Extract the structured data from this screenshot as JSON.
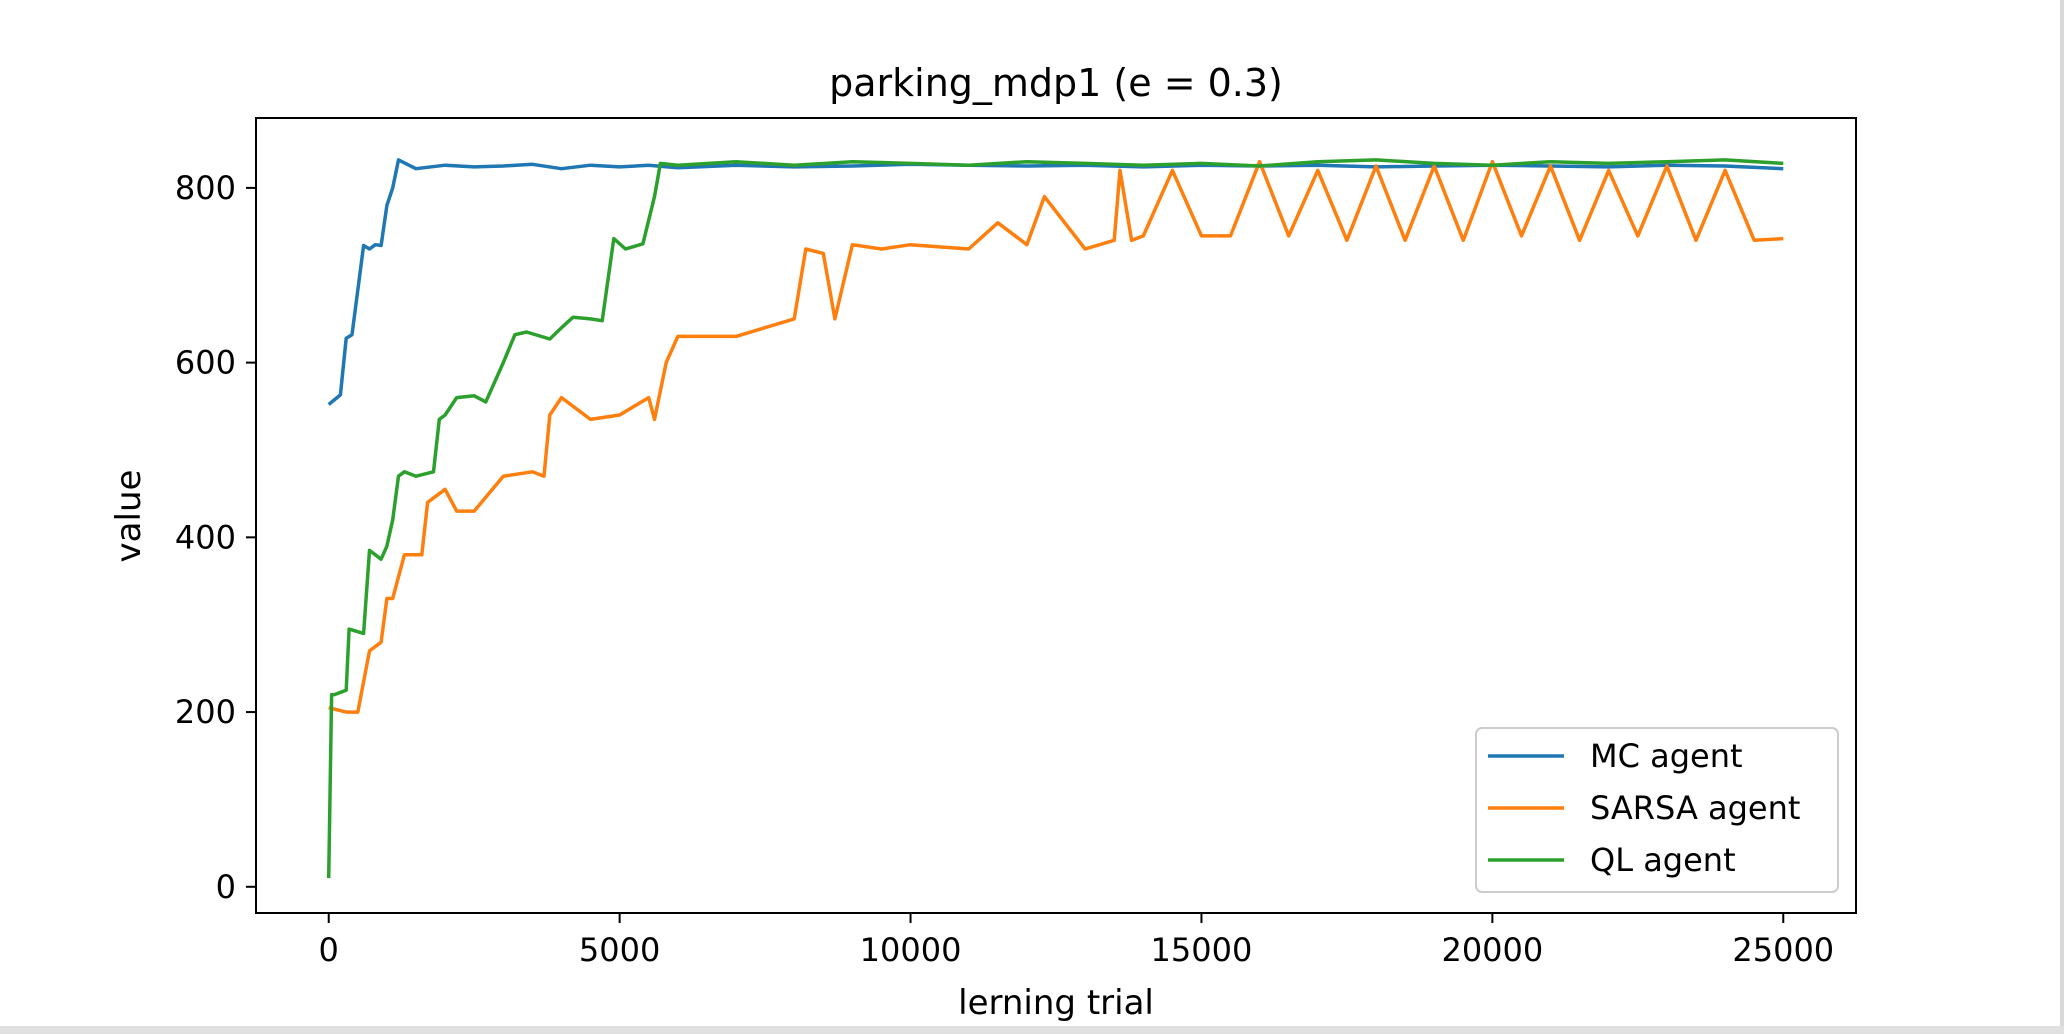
{
  "chart_data": {
    "type": "line",
    "title": "parking_mdp1 (e = 0.3)",
    "xlabel": "lerning trial",
    "ylabel": "value",
    "xlim": [
      -1250,
      26250
    ],
    "ylim": [
      -30,
      880
    ],
    "xticks": [
      0,
      5000,
      10000,
      15000,
      20000,
      25000
    ],
    "xtick_labels": [
      "0",
      "5000",
      "10000",
      "15000",
      "20000",
      "25000"
    ],
    "yticks": [
      0,
      200,
      400,
      600,
      800
    ],
    "ytick_labels": [
      "0",
      "200",
      "400",
      "600",
      "800"
    ],
    "grid": false,
    "legend_position": "bottom-right",
    "series": [
      {
        "name": "MC agent",
        "color": "#1f77b4",
        "x": [
          0,
          200,
          300,
          400,
          600,
          700,
          800,
          900,
          1000,
          1100,
          1200,
          1500,
          2000,
          2500,
          3000,
          3500,
          4000,
          4500,
          5000,
          5500,
          6000,
          7000,
          8000,
          9000,
          10000,
          11000,
          12000,
          13000,
          14000,
          15000,
          16000,
          17000,
          18000,
          19000,
          20000,
          21000,
          22000,
          23000,
          24000,
          25000
        ],
        "y": [
          552,
          563,
          628,
          632,
          734,
          730,
          735,
          734,
          780,
          800,
          832,
          822,
          826,
          824,
          825,
          827,
          822,
          826,
          824,
          826,
          823,
          826,
          824,
          825,
          827,
          826,
          825,
          826,
          824,
          826,
          825,
          826,
          824,
          825,
          826,
          825,
          824,
          826,
          825,
          822
        ]
      },
      {
        "name": "SARSA agent",
        "color": "#ff7f0e",
        "x": [
          0,
          300,
          500,
          700,
          900,
          1000,
          1100,
          1300,
          1600,
          1700,
          2000,
          2200,
          2500,
          3000,
          3500,
          3700,
          3800,
          4000,
          4500,
          5000,
          5500,
          5600,
          5800,
          6000,
          7000,
          8000,
          8200,
          8500,
          8700,
          9000,
          9500,
          10000,
          11000,
          11500,
          12000,
          12300,
          13000,
          13500,
          13600,
          13800,
          14000,
          14500,
          15000,
          15500,
          16000,
          16500,
          17000,
          17500,
          18000,
          18500,
          19000,
          19500,
          20000,
          20500,
          21000,
          21500,
          22000,
          22500,
          23000,
          23500,
          24000,
          24500,
          25000
        ],
        "y": [
          205,
          200,
          200,
          270,
          280,
          330,
          330,
          380,
          380,
          440,
          455,
          430,
          430,
          470,
          475,
          470,
          540,
          560,
          535,
          540,
          560,
          535,
          600,
          630,
          630,
          650,
          730,
          725,
          650,
          735,
          730,
          735,
          730,
          760,
          735,
          790,
          730,
          740,
          820,
          740,
          745,
          820,
          745,
          745,
          830,
          745,
          820,
          740,
          825,
          740,
          825,
          740,
          830,
          745,
          825,
          740,
          820,
          745,
          825,
          740,
          820,
          740,
          742
        ]
      },
      {
        "name": "QL agent",
        "color": "#2ca02c",
        "x": [
          0,
          50,
          100,
          300,
          350,
          600,
          700,
          900,
          1000,
          1100,
          1200,
          1300,
          1500,
          1800,
          1900,
          2000,
          2200,
          2500,
          2700,
          3000,
          3200,
          3400,
          3800,
          4000,
          4200,
          4500,
          4700,
          4900,
          5100,
          5400,
          5600,
          5700,
          6000,
          7000,
          8000,
          9000,
          10000,
          11000,
          12000,
          13000,
          14000,
          15000,
          16000,
          17000,
          18000,
          19000,
          20000,
          21000,
          22000,
          23000,
          24000,
          25000
        ],
        "y": [
          10,
          220,
          220,
          225,
          295,
          290,
          385,
          375,
          390,
          420,
          470,
          475,
          470,
          475,
          535,
          540,
          560,
          562,
          555,
          600,
          632,
          635,
          627,
          640,
          652,
          650,
          648,
          742,
          730,
          736,
          790,
          828,
          826,
          830,
          826,
          830,
          828,
          826,
          830,
          828,
          826,
          828,
          825,
          830,
          832,
          828,
          826,
          830,
          828,
          830,
          832,
          828
        ]
      }
    ]
  }
}
